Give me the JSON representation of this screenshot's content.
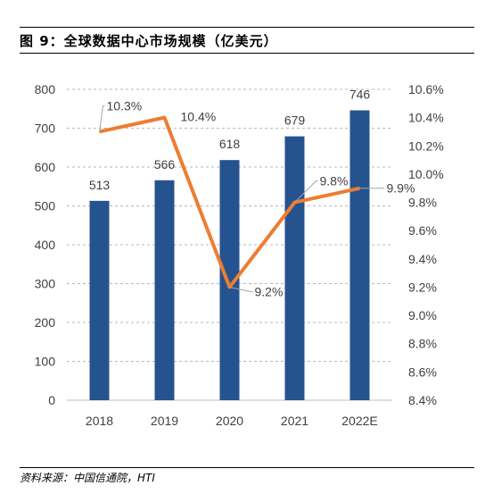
{
  "figure": {
    "title": "图 9：全球数据中心市场规模（亿美元）",
    "source": "资料来源：中国信通院，HTI"
  },
  "chart_data": {
    "type": "bar+line",
    "title": "全球数据中心市场规模（亿美元）",
    "categories": [
      "2018",
      "2019",
      "2020",
      "2021",
      "2022E"
    ],
    "series": [
      {
        "type": "bar",
        "axis": "left",
        "values": [
          513,
          566,
          618,
          679,
          746
        ],
        "labels": [
          "513",
          "566",
          "618",
          "679",
          "746"
        ],
        "color": "#255390"
      },
      {
        "type": "line",
        "axis": "right",
        "values": [
          10.3,
          10.4,
          9.2,
          9.8,
          9.9
        ],
        "labels": [
          "10.3%",
          "10.4%",
          "9.2%",
          "9.8%",
          "9.9%"
        ],
        "color": "#ED7D31"
      }
    ],
    "y_left": {
      "min": 0,
      "max": 800,
      "step": 100,
      "ticks": [
        "0",
        "100",
        "200",
        "300",
        "400",
        "500",
        "600",
        "700",
        "800"
      ]
    },
    "y_right": {
      "min": 8.4,
      "max": 10.6,
      "step": 0.2,
      "ticks": [
        "8.4%",
        "8.6%",
        "8.8%",
        "9.0%",
        "9.2%",
        "9.4%",
        "9.6%",
        "9.8%",
        "10.0%",
        "10.2%",
        "10.4%",
        "10.6%"
      ]
    },
    "gridlines": true,
    "legend": "none"
  }
}
